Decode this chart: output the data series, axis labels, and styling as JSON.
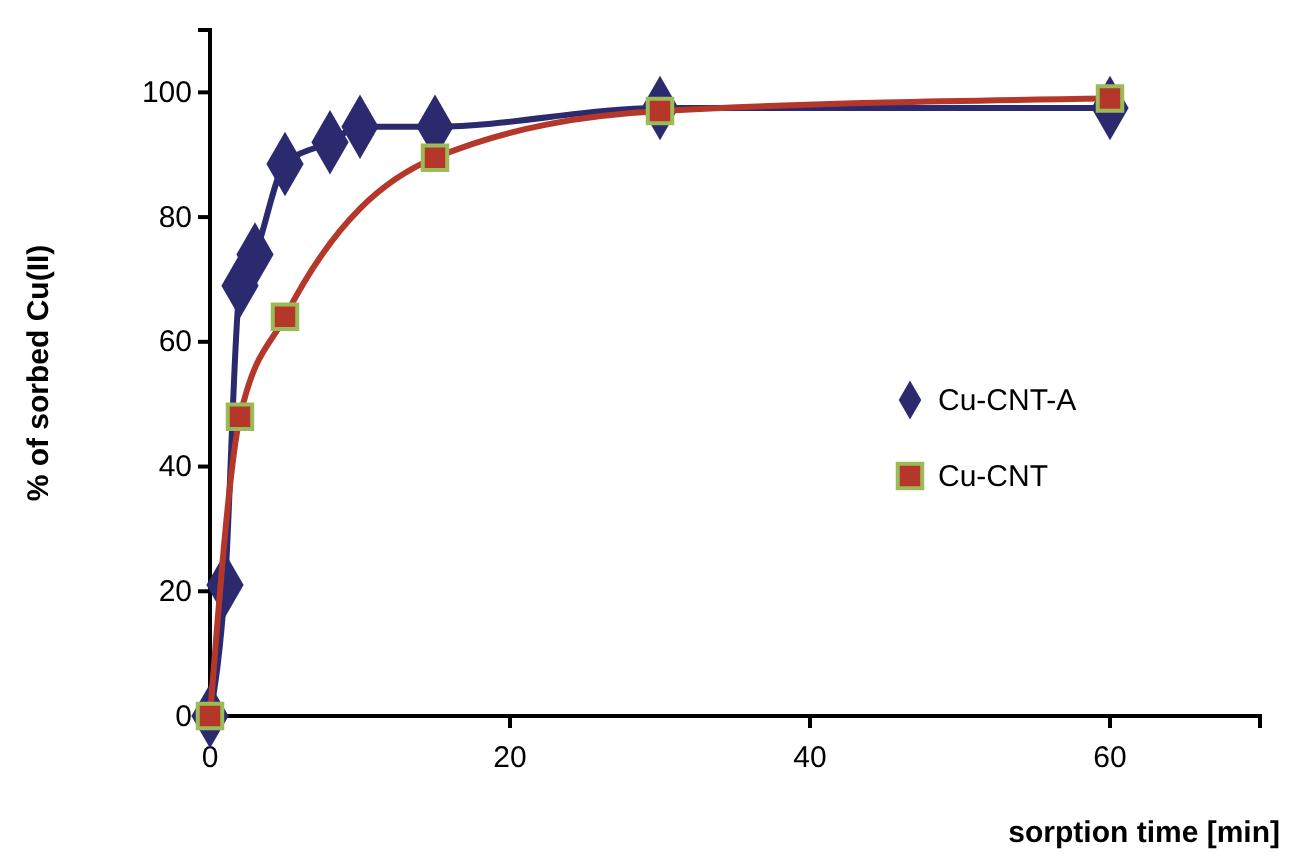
{
  "chart_data": {
    "type": "line",
    "xlabel": "sorption time [min]",
    "ylabel": "% of sorbed Cu(II)",
    "xlim": [
      0,
      70
    ],
    "ylim": [
      0,
      110
    ],
    "xticks": [
      0,
      20,
      40,
      60
    ],
    "yticks": [
      0,
      20,
      40,
      60,
      80,
      100
    ],
    "grid": false,
    "legend": "right",
    "series": [
      {
        "name": "Cu-CNT-A",
        "color": "#2b2a6e",
        "marker": "diamond",
        "x": [
          0,
          1,
          2,
          3,
          5,
          8,
          10,
          15,
          30,
          60
        ],
        "values": [
          0,
          21,
          69,
          74,
          88.5,
          92,
          94.5,
          94.5,
          97.5,
          97.5
        ]
      },
      {
        "name": "Cu-CNT",
        "color": "#b5372a",
        "marker": "square",
        "x": [
          0,
          2,
          5,
          15,
          30,
          60
        ],
        "values": [
          0,
          48,
          64,
          89.5,
          97,
          99
        ]
      }
    ]
  }
}
